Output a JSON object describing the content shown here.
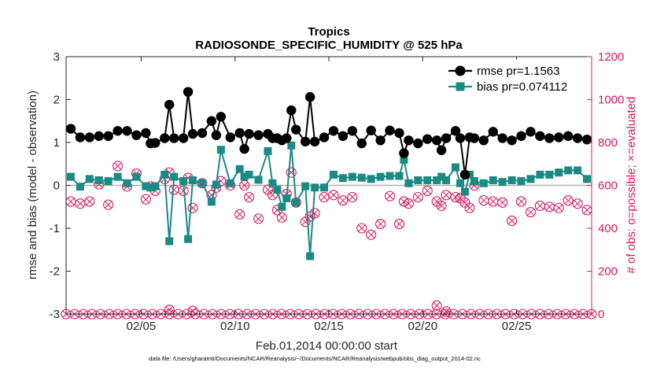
{
  "colors": {
    "rmse": "#000000",
    "bias": "#1b8a84",
    "obs": "#d6195e",
    "zero_line": "#b0b0b0",
    "axis": "#262626"
  },
  "chart_data": {
    "type": "line",
    "title": "Tropics",
    "subtitle": "RADIOSONDE_SPECIFIC_HUMIDITY @ 525 hPa",
    "xlabel": "Feb.01,2014 00:00:00 start",
    "ylabel": "rmse and bias (model - observation)",
    "ylabel_right": "# of obs: o=possible; ×=evaluated",
    "footer": "data file: /Users/gharamti/Documents/NCAR/Reanalysis/~/Documents/NCAR/Reanalysis/webpub/obs_diag_output_2014-02.nc",
    "xlim": [
      1.0,
      29.0
    ],
    "ylim": [
      -3,
      3
    ],
    "ylim_right": [
      0,
      1200
    ],
    "yticks": [
      "3",
      "2",
      "1",
      "0",
      "-1",
      "-2",
      "-3"
    ],
    "yticks_right": [
      "1200",
      "1000",
      "800",
      "600",
      "400",
      "200",
      "0"
    ],
    "xticks": [
      {
        "day": 5,
        "label": "02/05"
      },
      {
        "day": 10,
        "label": "02/10"
      },
      {
        "day": 15,
        "label": "02/15"
      },
      {
        "day": 20,
        "label": "02/20"
      },
      {
        "day": 25,
        "label": "02/25"
      }
    ],
    "legend": [
      "rmse pr=1.1563",
      "bias pr=0.074112"
    ],
    "legend_position": "top-right",
    "series": [
      {
        "name": "rmse pr=1.1563",
        "x": [
          1.25,
          1.75,
          2.25,
          2.75,
          3.25,
          3.75,
          4.25,
          4.75,
          5.25,
          5.5,
          5.75,
          6.25,
          6.5,
          6.75,
          7.25,
          7.5,
          7.75,
          8.25,
          8.75,
          9.0,
          9.25,
          9.75,
          10.25,
          10.5,
          10.75,
          11.25,
          11.75,
          12.0,
          12.25,
          12.5,
          12.75,
          13.0,
          13.25,
          13.75,
          14.0,
          14.25,
          14.75,
          15.25,
          15.75,
          16.25,
          16.75,
          17.25,
          17.75,
          18.25,
          18.75,
          19.0,
          19.25,
          19.75,
          20.25,
          20.75,
          21.0,
          21.25,
          21.75,
          22.0,
          22.25,
          22.5,
          22.75,
          23.25,
          23.75,
          24.25,
          24.75,
          25.25,
          25.75,
          26.25,
          26.75,
          27.25,
          27.75,
          28.25,
          28.75
        ],
        "values": [
          1.32,
          1.12,
          1.12,
          1.15,
          1.15,
          1.27,
          1.27,
          1.17,
          1.22,
          0.98,
          0.99,
          1.1,
          1.88,
          1.1,
          1.1,
          2.18,
          1.2,
          1.22,
          1.5,
          1.17,
          1.6,
          1.12,
          1.22,
          0.85,
          1.2,
          1.17,
          1.2,
          1.1,
          1.1,
          1.05,
          1.1,
          1.75,
          1.3,
          1.02,
          2.06,
          1.02,
          1.12,
          1.27,
          1.15,
          1.27,
          0.98,
          1.28,
          1.05,
          1.28,
          1.22,
          0.75,
          1.05,
          0.98,
          1.08,
          1.05,
          0.82,
          1.1,
          1.27,
          1.1,
          0.25,
          1.12,
          1.1,
          1.05,
          1.25,
          1.1,
          1.05,
          1.15,
          1.25,
          1.15,
          1.1,
          1.12,
          1.15,
          1.1,
          1.07
        ]
      },
      {
        "name": "bias pr=0.074112",
        "x": [
          1.25,
          1.75,
          2.25,
          2.75,
          3.25,
          3.75,
          4.25,
          4.75,
          5.25,
          5.5,
          5.75,
          6.25,
          6.5,
          6.75,
          7.25,
          7.5,
          7.75,
          8.25,
          8.75,
          9.0,
          9.25,
          9.75,
          10.25,
          10.5,
          10.75,
          11.25,
          11.75,
          12.0,
          12.25,
          12.5,
          12.75,
          13.0,
          13.25,
          13.75,
          14.0,
          14.25,
          14.75,
          15.25,
          15.75,
          16.25,
          16.75,
          17.25,
          17.75,
          18.25,
          18.75,
          19.0,
          19.25,
          19.75,
          20.25,
          20.75,
          21.0,
          21.25,
          21.75,
          22.0,
          22.25,
          22.5,
          22.75,
          23.25,
          23.75,
          24.25,
          24.75,
          25.25,
          25.75,
          26.25,
          26.75,
          27.25,
          27.75,
          28.25,
          28.75
        ],
        "values": [
          0.2,
          -0.03,
          0.15,
          0.12,
          0.1,
          0.2,
          0.05,
          0.2,
          -0.02,
          -0.05,
          -0.02,
          0.25,
          -1.3,
          0.2,
          0.1,
          -1.25,
          0.12,
          0.05,
          -0.38,
          0.02,
          0.83,
          0.05,
          0.38,
          0.2,
          0.25,
          0.13,
          0.8,
          0.05,
          -0.1,
          -0.5,
          -0.3,
          0.93,
          -0.4,
          -0.02,
          -1.65,
          -0.05,
          -0.05,
          0.25,
          0.17,
          0.2,
          0.18,
          0.15,
          0.2,
          0.22,
          0.22,
          0.6,
          0.05,
          0.12,
          0.12,
          0.12,
          0.2,
          0.12,
          0.42,
          0.05,
          -0.15,
          0.25,
          0.1,
          0.05,
          0.12,
          0.08,
          0.12,
          0.1,
          0.15,
          0.25,
          0.25,
          0.3,
          0.35,
          0.35,
          0.15
        ]
      }
    ],
    "obs_possible": {
      "x": [
        1.25,
        1.75,
        2.25,
        2.75,
        3.25,
        3.75,
        4.25,
        4.75,
        5.25,
        5.5,
        5.75,
        6.25,
        6.5,
        6.75,
        7.25,
        7.5,
        7.75,
        8.25,
        8.75,
        9.0,
        9.25,
        9.75,
        10.25,
        10.5,
        10.75,
        11.25,
        11.75,
        12.0,
        12.25,
        12.5,
        12.75,
        13.0,
        13.25,
        13.75,
        14.0,
        14.25,
        14.75,
        15.25,
        15.75,
        16.25,
        16.75,
        17.25,
        17.75,
        18.25,
        18.75,
        19.0,
        19.25,
        19.75,
        20.25,
        20.75,
        21.0,
        21.25,
        21.75,
        22.0,
        22.25,
        22.5,
        22.75,
        23.25,
        23.75,
        24.25,
        24.75,
        25.25,
        25.75,
        26.25,
        26.75,
        27.25,
        27.75,
        28.25,
        28.75
      ],
      "values": [
        525,
        515,
        525,
        605,
        510,
        690,
        595,
        655,
        535,
        595,
        575,
        630,
        660,
        580,
        575,
        635,
        495,
        610,
        555,
        590,
        620,
        600,
        465,
        600,
        545,
        445,
        580,
        555,
        485,
        450,
        560,
        660,
        520,
        430,
        455,
        470,
        545,
        555,
        530,
        545,
        400,
        370,
        420,
        550,
        420,
        525,
        515,
        545,
        575,
        525,
        505,
        555,
        545,
        540,
        520,
        495,
        600,
        530,
        525,
        520,
        435,
        525,
        475,
        505,
        500,
        495,
        530,
        515,
        485
      ],
      "zero_row_count": 62
    }
  }
}
